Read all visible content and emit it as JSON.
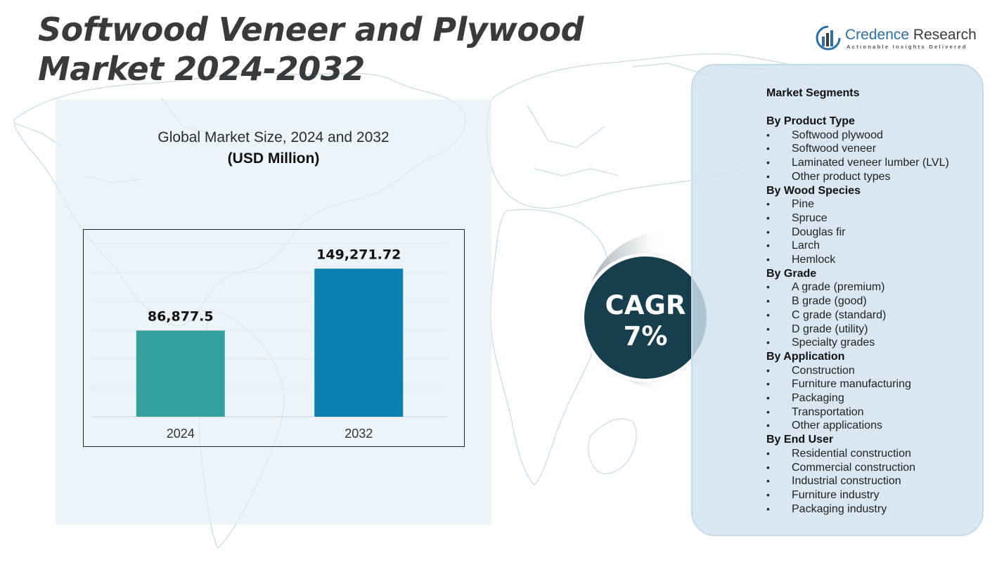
{
  "title": "Softwood Veneer and Plywood  Market 2024-2032",
  "brand": {
    "name_part1": "Credence",
    "name_part2": " Research",
    "tagline": "Actionable Insights Delivered"
  },
  "chart_data": {
    "type": "bar",
    "title": "Global Market Size, 2024 and 2032",
    "unit": "(USD Million)",
    "categories": [
      "2024",
      "2032"
    ],
    "values": [
      86877.5,
      149271.72
    ],
    "value_labels": [
      "86,877.5",
      "149,271.72"
    ],
    "colors": [
      "#35a19e",
      "#0a7fb0"
    ],
    "ylim": [
      0,
      175000
    ],
    "grid": true,
    "xlabel": "",
    "ylabel": ""
  },
  "cagr": {
    "label": "CAGR",
    "value": "7%"
  },
  "segments": {
    "heading": "Market Segments",
    "groups": [
      {
        "title": "By Product Type",
        "items": [
          "Softwood plywood",
          "Softwood veneer",
          "Laminated veneer lumber (LVL)",
          "Other product types"
        ]
      },
      {
        "title": "By Wood Species",
        "items": [
          "Pine",
          "Spruce",
          "Douglas fir",
          "Larch",
          "Hemlock"
        ]
      },
      {
        "title": "By Grade",
        "items": [
          "A grade (premium)",
          "B grade (good)",
          "C grade (standard)",
          "D grade (utility)",
          "Specialty grades"
        ]
      },
      {
        "title": "By Application",
        "items": [
          "Construction",
          "Furniture manufacturing",
          "Packaging",
          "Transportation",
          "Other applications"
        ]
      },
      {
        "title": "By End User",
        "items": [
          "Residential construction",
          "Commercial construction",
          "Industrial construction",
          "Furniture industry",
          "Packaging industry"
        ]
      }
    ]
  },
  "colors": {
    "cagr_circle": "#173e4d",
    "panel": "#d0e2ee",
    "logo_blue": "#2a6fa8"
  }
}
